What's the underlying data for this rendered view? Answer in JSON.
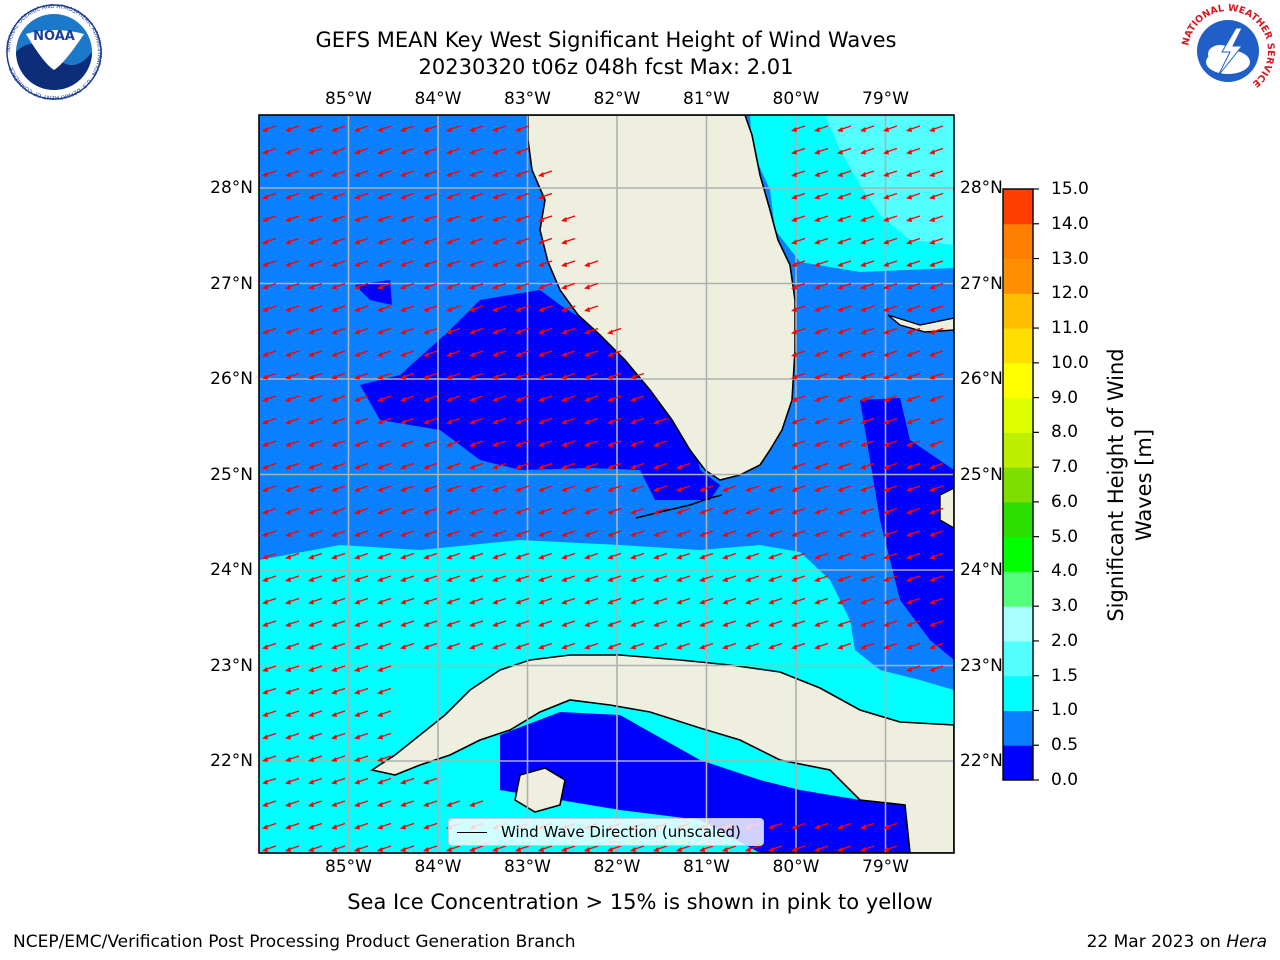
{
  "title": {
    "line1": "GEFS MEAN Key West Significant Height of Wind Waves",
    "line2": "20230320 t06z 048h fcst   Max: 2.01"
  },
  "map": {
    "lon_labels": [
      "85°W",
      "84°W",
      "83°W",
      "82°W",
      "81°W",
      "80°W",
      "79°W"
    ],
    "lat_labels": [
      "28°N",
      "27°N",
      "26°N",
      "25°N",
      "24°N",
      "23°N",
      "22°N"
    ],
    "legend_label": "Wind Wave Direction (unscaled)",
    "colors": {
      "land": "#efefdf",
      "h_0_05": "#0000ff",
      "h_05_1": "#0a7fff",
      "h_1_15": "#00ffff",
      "h_15_2": "#54ffff",
      "arrow": "#ff0000",
      "grid": "#b0b0b0"
    }
  },
  "colorbar": {
    "label": "Significant Height of Wind Waves [m]",
    "ticks": [
      "0.0",
      "0.5",
      "1.0",
      "1.5",
      "2.0",
      "3.0",
      "4.0",
      "5.0",
      "6.0",
      "7.0",
      "8.0",
      "9.0",
      "10.0",
      "11.0",
      "12.0",
      "13.0",
      "14.0",
      "15.0"
    ],
    "colors": [
      "#0000ff",
      "#0a7fff",
      "#00ffff",
      "#54ffff",
      "#a8ffff",
      "#54ff7e",
      "#00ff00",
      "#2adf00",
      "#7fdf00",
      "#bfef00",
      "#dfff00",
      "#ffff00",
      "#ffdf00",
      "#ffbf00",
      "#ff8f00",
      "#ff7f00",
      "#ff3f00",
      "#ff0000"
    ]
  },
  "caption": "Sea Ice Concentration > 15% is shown in pink to yellow",
  "footer": {
    "left": "NCEP/EMC/Verification Post Processing Product Generation Branch",
    "right_date": "22 Mar 2023 on ",
    "right_host": "Hera"
  },
  "logos": {
    "noaa_text": "NOAA",
    "noaa_ring": "NATIONAL OCEANIC AND ATMOSPHERIC ADMINISTRATION · U.S. DEPARTMENT OF COMMERCE",
    "nws_ring": "NATIONAL WEATHER SERVICE"
  }
}
